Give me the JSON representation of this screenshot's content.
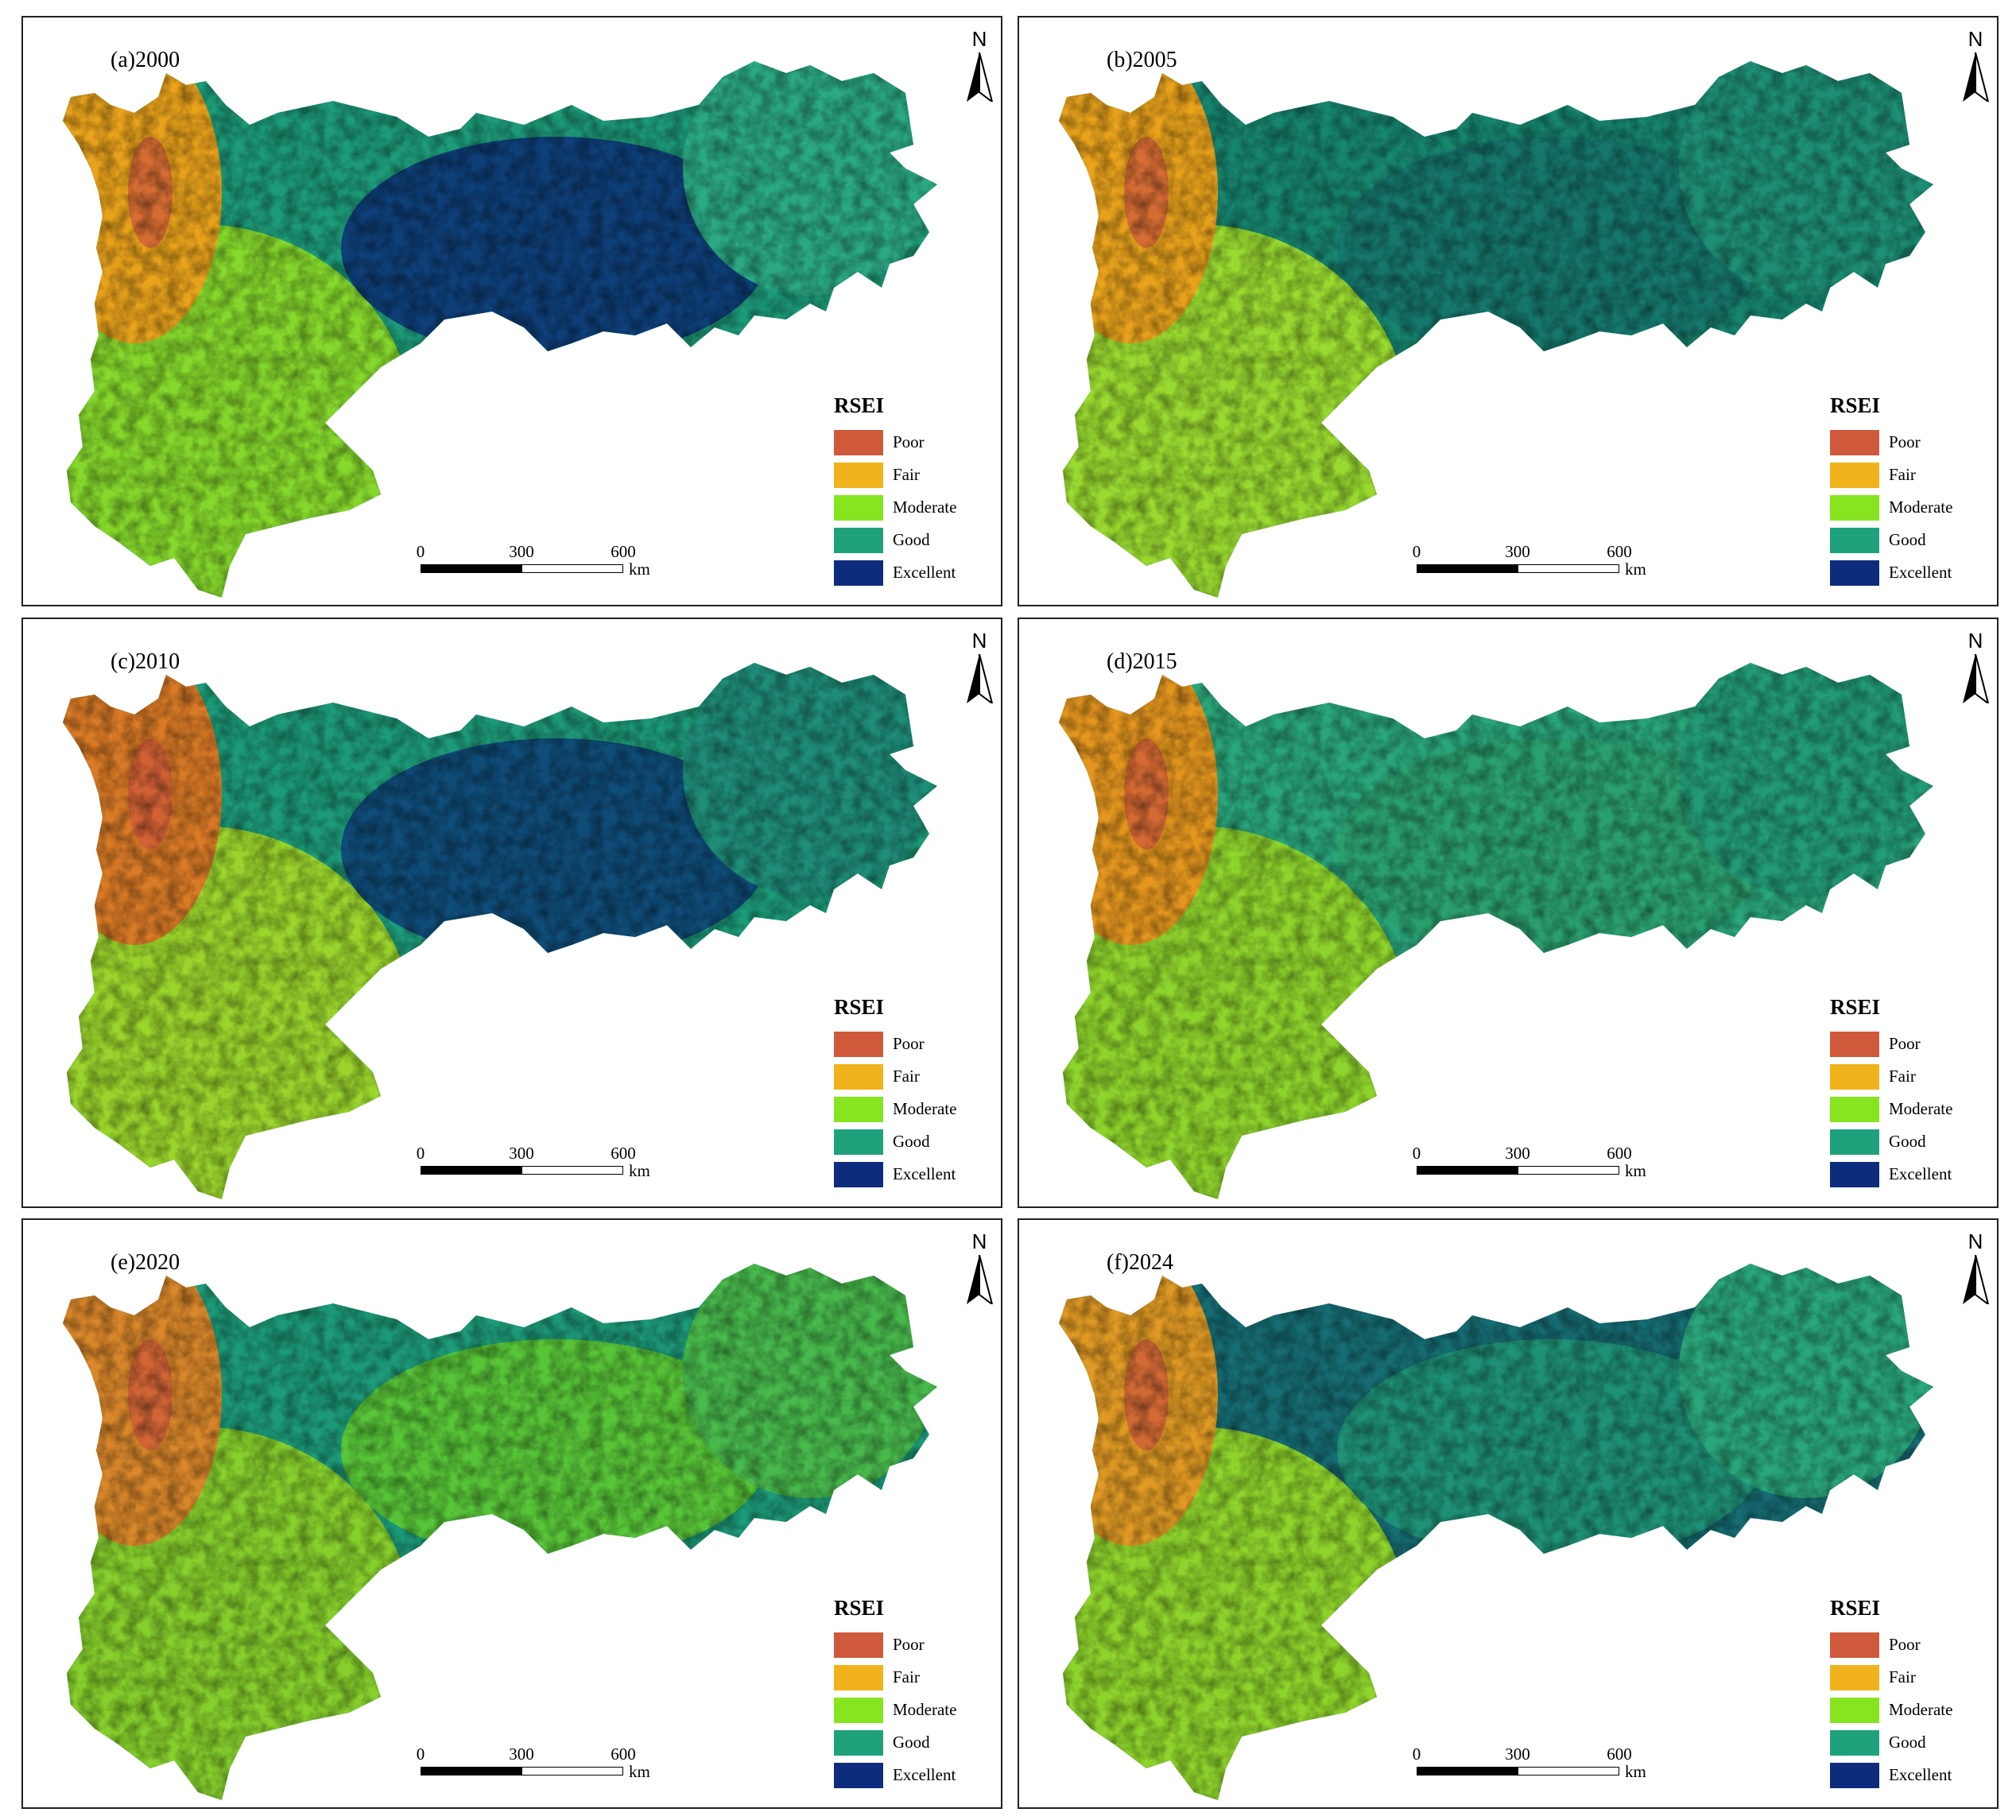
{
  "panels": [
    {
      "title": "(a)2000",
      "profile": {
        "nw": "#e8a21c",
        "sw": "#86d82c",
        "c": "#1d9b79",
        "ce": "#0e3f78",
        "ne": "#2ba884"
      }
    },
    {
      "title": "(b)2005",
      "profile": {
        "nw": "#e8a21c",
        "sw": "#9ada30",
        "c": "#17866f",
        "ce": "#16776d",
        "ne": "#1e8f75"
      }
    },
    {
      "title": "(c)2010",
      "profile": {
        "nw": "#d97a26",
        "sw": "#9ad42c",
        "c": "#1d9b79",
        "ce": "#0f4c78",
        "ne": "#1f8d78"
      }
    },
    {
      "title": "(d)2015",
      "profile": {
        "nw": "#e4961f",
        "sw": "#8fd42c",
        "c": "#2aa67b",
        "ce": "#2ba06f",
        "ne": "#239b78"
      }
    },
    {
      "title": "(e)2020",
      "profile": {
        "nw": "#d9872a",
        "sw": "#86cf2c",
        "c": "#1d9b79",
        "ce": "#58c538",
        "ne": "#48b94c"
      }
    },
    {
      "title": "(f)2024",
      "profile": {
        "nw": "#e09a24",
        "sw": "#8fd42c",
        "c": "#166d73",
        "ce": "#1f9176",
        "ne": "#2aa67b"
      }
    }
  ],
  "legend": {
    "title": "RSEI",
    "items": [
      {
        "label": "Poor",
        "color": "#cf5a3b"
      },
      {
        "label": "Fair",
        "color": "#f0b31c"
      },
      {
        "label": "Moderate",
        "color": "#86e51e"
      },
      {
        "label": "Good",
        "color": "#1fa27b"
      },
      {
        "label": "Excellent",
        "color": "#0d2d7c"
      }
    ]
  },
  "north_arrow": {
    "label": "N"
  },
  "scale_bar": {
    "ticks": [
      "0",
      "300",
      "600"
    ],
    "unit": "km"
  }
}
